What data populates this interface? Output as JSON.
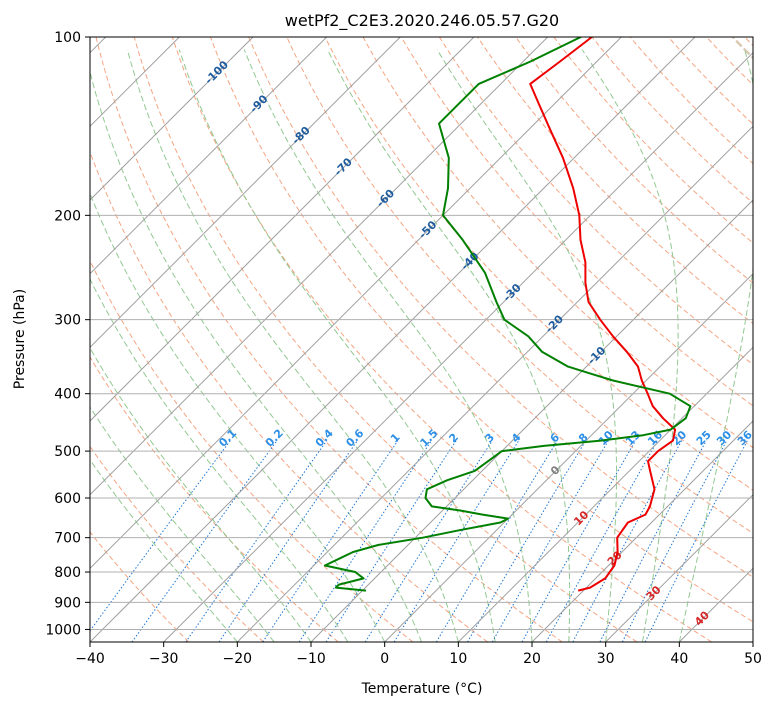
{
  "chart_data": {
    "type": "line",
    "title": "wetPf2_C2E3.2020.246.05.57.G20",
    "xlabel": "Temperature (°C)",
    "ylabel": "Pressure (hPa)",
    "xlim": [
      -40,
      50
    ],
    "ylim": [
      1050,
      100
    ],
    "y_scale": "log",
    "x_ticks": [
      -40,
      -30,
      -20,
      -10,
      0,
      10,
      20,
      30,
      40,
      50
    ],
    "x_tick_labels": [
      "−40",
      "−30",
      "−20",
      "−10",
      "0",
      "10",
      "20",
      "30",
      "40",
      "50"
    ],
    "y_ticks": [
      1000,
      900,
      800,
      700,
      600,
      500,
      400,
      300,
      200,
      100
    ],
    "y_tick_labels": [
      "1000",
      "900",
      "800",
      "700",
      "600",
      "500",
      "400",
      "300",
      "200",
      "100"
    ],
    "grid": true,
    "skew": "skew-T log-P",
    "colors": {
      "temperature": "#ee0000",
      "dewpoint": "#008000",
      "isotherm": "#a0a0a0",
      "dry_adiabat": "#f4a582",
      "moist_adiabat": "#92c892",
      "mixing_ratio": "#1f77d4",
      "pressure_grid": "#b0b0b0",
      "isotherm_label": "#1f5c9e",
      "mixing_label": "#2d8fe6",
      "warm_label": "#d62728"
    },
    "series": [
      {
        "key": "temperature",
        "p": [
          860,
          850,
          820,
          780,
          740,
          700,
          660,
          640,
          620,
          580,
          540,
          520,
          500,
          480,
          460,
          440,
          420,
          400,
          380,
          360,
          340,
          320,
          300,
          280,
          260,
          240,
          220,
          200,
          180,
          160,
          145,
          130,
          120,
          110,
          100
        ],
        "t": [
          19.3,
          20.5,
          21.3,
          20.8,
          19.4,
          17.4,
          16.8,
          18.1,
          17.6,
          15.9,
          12.8,
          11.2,
          11.2,
          11.8,
          10.6,
          7.4,
          4.4,
          2.0,
          -0.6,
          -3.0,
          -6.5,
          -10.5,
          -14.5,
          -18.5,
          -21.5,
          -24.3,
          -28.0,
          -31.5,
          -36.0,
          -41.5,
          -46.5,
          -52.0,
          -56.0,
          -55.0,
          -54.0
        ]
      },
      {
        "key": "dewpoint",
        "p": [
          860,
          850,
          840,
          820,
          800,
          780,
          760,
          740,
          720,
          700,
          680,
          660,
          650,
          640,
          630,
          620,
          600,
          580,
          560,
          540,
          520,
          500,
          490,
          480,
          470,
          460,
          440,
          420,
          400,
          380,
          370,
          360,
          340,
          320,
          300,
          280,
          250,
          220,
          200,
          180,
          160,
          140,
          120,
          110,
          100
        ],
        "t": [
          -9.5,
          -14.0,
          -14.0,
          -11.5,
          -13.5,
          -18.5,
          -17.5,
          -16.5,
          -14.0,
          -9.0,
          -5.0,
          -0.5,
          0.0,
          -4.0,
          -7.5,
          -12.0,
          -14.0,
          -15.0,
          -13.5,
          -11.0,
          -10.5,
          -10.0,
          -5.0,
          2.0,
          7.0,
          10.0,
          10.5,
          9.5,
          5.0,
          -4.5,
          -8.5,
          -12.5,
          -18.0,
          -22.0,
          -27.5,
          -31.0,
          -36.5,
          -44.0,
          -50.0,
          -53.0,
          -57.0,
          -63.0,
          -63.0,
          -59.0,
          -55.5
        ]
      }
    ],
    "isotherm_labels": [
      "-100",
      "-90",
      "-80",
      "-70",
      "-60",
      "-50",
      "-40",
      "-30",
      "-20",
      "-10",
      "0",
      "10",
      "20",
      "30",
      "40"
    ],
    "mixing_ratio_labels": [
      "0.1",
      "0.2",
      "0.4",
      "0.6",
      "1",
      "1.5",
      "2",
      "3",
      "4",
      "6",
      "8",
      "10",
      "13",
      "16",
      "20",
      "25",
      "30",
      "36"
    ]
  }
}
